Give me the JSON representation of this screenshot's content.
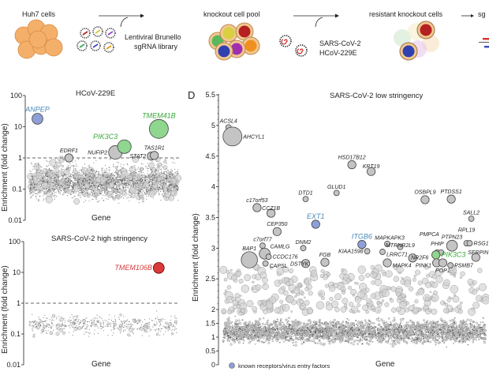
{
  "schematic": {
    "step1": "Huh7 cells",
    "library_line1": "Lentiviral Brunello",
    "library_line2": "sgRNA library",
    "step2": "knockout cell pool",
    "virus_line1": "SARS-CoV-2",
    "virus_line2": "HCoV-229E",
    "step3": "resistant knockout cells",
    "step4_partial": "sg"
  },
  "colors": {
    "receptor_blue": "#8d9fd8",
    "receptor_label": "#4a8ab8",
    "green": "#8fd68f",
    "green_label": "#3aaa3a",
    "red": "#d93a3a",
    "gray": "#bdbdbd",
    "cells_orange": "#f4b06a"
  },
  "chart_data": [
    {
      "id": "hcov229e",
      "type": "scatter",
      "title": "HCoV-229E",
      "xlabel": "Gene",
      "ylabel": "Enrichment (fold change)",
      "yscale": "log",
      "ylim": [
        0.01,
        100
      ],
      "yticks": [
        "100",
        "10",
        "1",
        "0.1",
        "0.01"
      ],
      "threshold": 1,
      "x_unit": "gene rank (percent of library)",
      "points": [
        {
          "gene": "ANPEP",
          "x": 5,
          "y": 18,
          "size": 3,
          "color": "blue"
        },
        {
          "gene": "EDRF1",
          "x": 26,
          "y": 1.0,
          "size": 2,
          "color": "gray"
        },
        {
          "gene": "NUFIP2",
          "x": 57,
          "y": 1.5,
          "size": 4,
          "color": "gray"
        },
        {
          "gene": "PIK3C3",
          "x": 63,
          "y": 2.3,
          "size": 4,
          "color": "green"
        },
        {
          "gene": "STAT2",
          "x": 81,
          "y": 1.15,
          "size": 2,
          "color": "gray"
        },
        {
          "gene": "TAS1R1",
          "x": 83,
          "y": 1.2,
          "size": 2,
          "color": "gray"
        },
        {
          "gene": "TMEM41B",
          "x": 86,
          "y": 8.5,
          "size": 6,
          "color": "green"
        }
      ]
    },
    {
      "id": "sars_high",
      "type": "scatter",
      "title": "SARS-CoV-2 high stringency",
      "xlabel": "Gene",
      "ylabel": "Enrichment (fold change)",
      "yscale": "log",
      "ylim": [
        0.01,
        100
      ],
      "yticks": [
        "100",
        "10",
        "1",
        "0.1",
        "0.01"
      ],
      "threshold": 1,
      "points": [
        {
          "gene": "TMEM106B",
          "x": 87,
          "y": 14,
          "size": 3,
          "color": "red"
        }
      ]
    },
    {
      "id": "sars_low",
      "panel_letter": "D",
      "type": "scatter",
      "title": "SARS-CoV-2 low stringency",
      "xlabel": "Gene",
      "ylabel": "Enrichment (fold change)",
      "yscale": "broken-linear",
      "ylim": [
        0,
        5.5
      ],
      "yticks": [
        "5.5",
        "5",
        "4.5",
        "4",
        "3.5",
        "3",
        "2.5",
        "2",
        "1.5",
        "1",
        "0.5",
        "0"
      ],
      "legend": {
        "label": "known receptors/virus entry factors",
        "color": "blue",
        "placement": "bottom-left"
      },
      "points": [
        {
          "gene": "ACSL4",
          "x": 2,
          "y": 4.97,
          "size": 1,
          "color": "gray"
        },
        {
          "gene": "AHCYL1",
          "x": 3.5,
          "y": 4.82,
          "size": 6,
          "color": "gray"
        },
        {
          "gene": "HSD17B12",
          "x": 48.7,
          "y": 4.36,
          "size": 2,
          "color": "gray"
        },
        {
          "gene": "KRT19",
          "x": 56,
          "y": 4.25,
          "size": 2,
          "color": "gray"
        },
        {
          "gene": "GLUD1",
          "x": 42.9,
          "y": 3.9,
          "size": 1,
          "color": "gray"
        },
        {
          "gene": "DTD1",
          "x": 31.2,
          "y": 3.8,
          "size": 1,
          "color": "gray"
        },
        {
          "gene": "OSBPL9",
          "x": 76.4,
          "y": 3.79,
          "size": 2,
          "color": "gray"
        },
        {
          "gene": "PTDSS1",
          "x": 86.3,
          "y": 3.8,
          "size": 2,
          "color": "gray"
        },
        {
          "gene": "c17orf53",
          "x": 12.8,
          "y": 3.66,
          "size": 2,
          "color": "gray"
        },
        {
          "gene": "CCZ1B",
          "x": 18.1,
          "y": 3.57,
          "size": 2,
          "color": "gray"
        },
        {
          "gene": "SALL2",
          "x": 93.9,
          "y": 3.48,
          "size": 1,
          "color": "gray"
        },
        {
          "gene": "EXT1",
          "x": 35,
          "y": 3.39,
          "size": 2,
          "color": "blue"
        },
        {
          "gene": "CEP350",
          "x": 20.4,
          "y": 3.27,
          "size": 2,
          "color": "gray"
        },
        {
          "gene": "ITGB6",
          "x": 52.5,
          "y": 3.06,
          "size": 2,
          "color": "blue"
        },
        {
          "gene": "MAPKAPK3",
          "x": 62.1,
          "y": 3.07,
          "size": 1,
          "color": "gray"
        },
        {
          "gene": "MTRNR2L9",
          "x": 67,
          "y": 3.02,
          "size": 1,
          "color": "gray"
        },
        {
          "gene": "PTPN23",
          "x": 86.6,
          "y": 3.04,
          "size": 3,
          "color": "gray"
        },
        {
          "gene": "RPL19",
          "x": 92.1,
          "y": 3.08,
          "size": 1,
          "color": "gray"
        },
        {
          "gene": "RSG1",
          "x": 93.3,
          "y": 3.08,
          "size": 1,
          "color": "gray"
        },
        {
          "gene": "c7orf77",
          "x": 14.9,
          "y": 3.04,
          "size": 1,
          "color": "gray"
        },
        {
          "gene": "DNM2",
          "x": 30.3,
          "y": 3.0,
          "size": 1,
          "color": "gray"
        },
        {
          "gene": "BAP1",
          "x": 9.9,
          "y": 2.81,
          "size": 5,
          "color": "gray"
        },
        {
          "gene": "CAMLG",
          "x": 15.7,
          "y": 2.91,
          "size": 3,
          "color": "gray"
        },
        {
          "gene": "CCDC176",
          "x": 17.2,
          "y": 2.86,
          "size": 1,
          "color": "gray"
        },
        {
          "gene": "KIAA1598",
          "x": 54.5,
          "y": 2.95,
          "size": 1,
          "color": "gray"
        },
        {
          "gene": "LRRC71",
          "x": 60.3,
          "y": 2.94,
          "size": 1,
          "color": "gray"
        },
        {
          "gene": "NR2F6",
          "x": 71.7,
          "y": 2.84,
          "size": 2,
          "color": "gray"
        },
        {
          "gene": "PHIP",
          "x": 81,
          "y": 2.93,
          "size": 1,
          "color": "gray"
        },
        {
          "gene": "PMPCA",
          "x": 82.5,
          "y": 2.93,
          "size": 1,
          "color": "gray"
        },
        {
          "gene": "PIK3C3",
          "x": 80.5,
          "y": 2.89,
          "size": 2,
          "color": "green"
        },
        {
          "gene": "SERPIN",
          "x": 95.6,
          "y": 2.85,
          "size": 2,
          "color": "gray"
        },
        {
          "gene": "CAPSL",
          "x": 16,
          "y": 2.75,
          "size": 1,
          "color": "gray"
        },
        {
          "gene": "DSTYK",
          "x": 31.2,
          "y": 2.75,
          "size": 2,
          "color": "gray"
        },
        {
          "gene": "FGB",
          "x": 38.5,
          "y": 2.77,
          "size": 2,
          "color": "gray"
        },
        {
          "gene": "MAPK4",
          "x": 62.1,
          "y": 2.76,
          "size": 2,
          "color": "gray"
        },
        {
          "gene": "PINK1",
          "x": 80.8,
          "y": 2.76,
          "size": 2,
          "color": "gray"
        },
        {
          "gene": "POP1",
          "x": 83.1,
          "y": 2.76,
          "size": 2,
          "color": "gray"
        },
        {
          "gene": "PSMB7",
          "x": 86,
          "y": 2.72,
          "size": 1,
          "color": "gray"
        }
      ]
    }
  ]
}
